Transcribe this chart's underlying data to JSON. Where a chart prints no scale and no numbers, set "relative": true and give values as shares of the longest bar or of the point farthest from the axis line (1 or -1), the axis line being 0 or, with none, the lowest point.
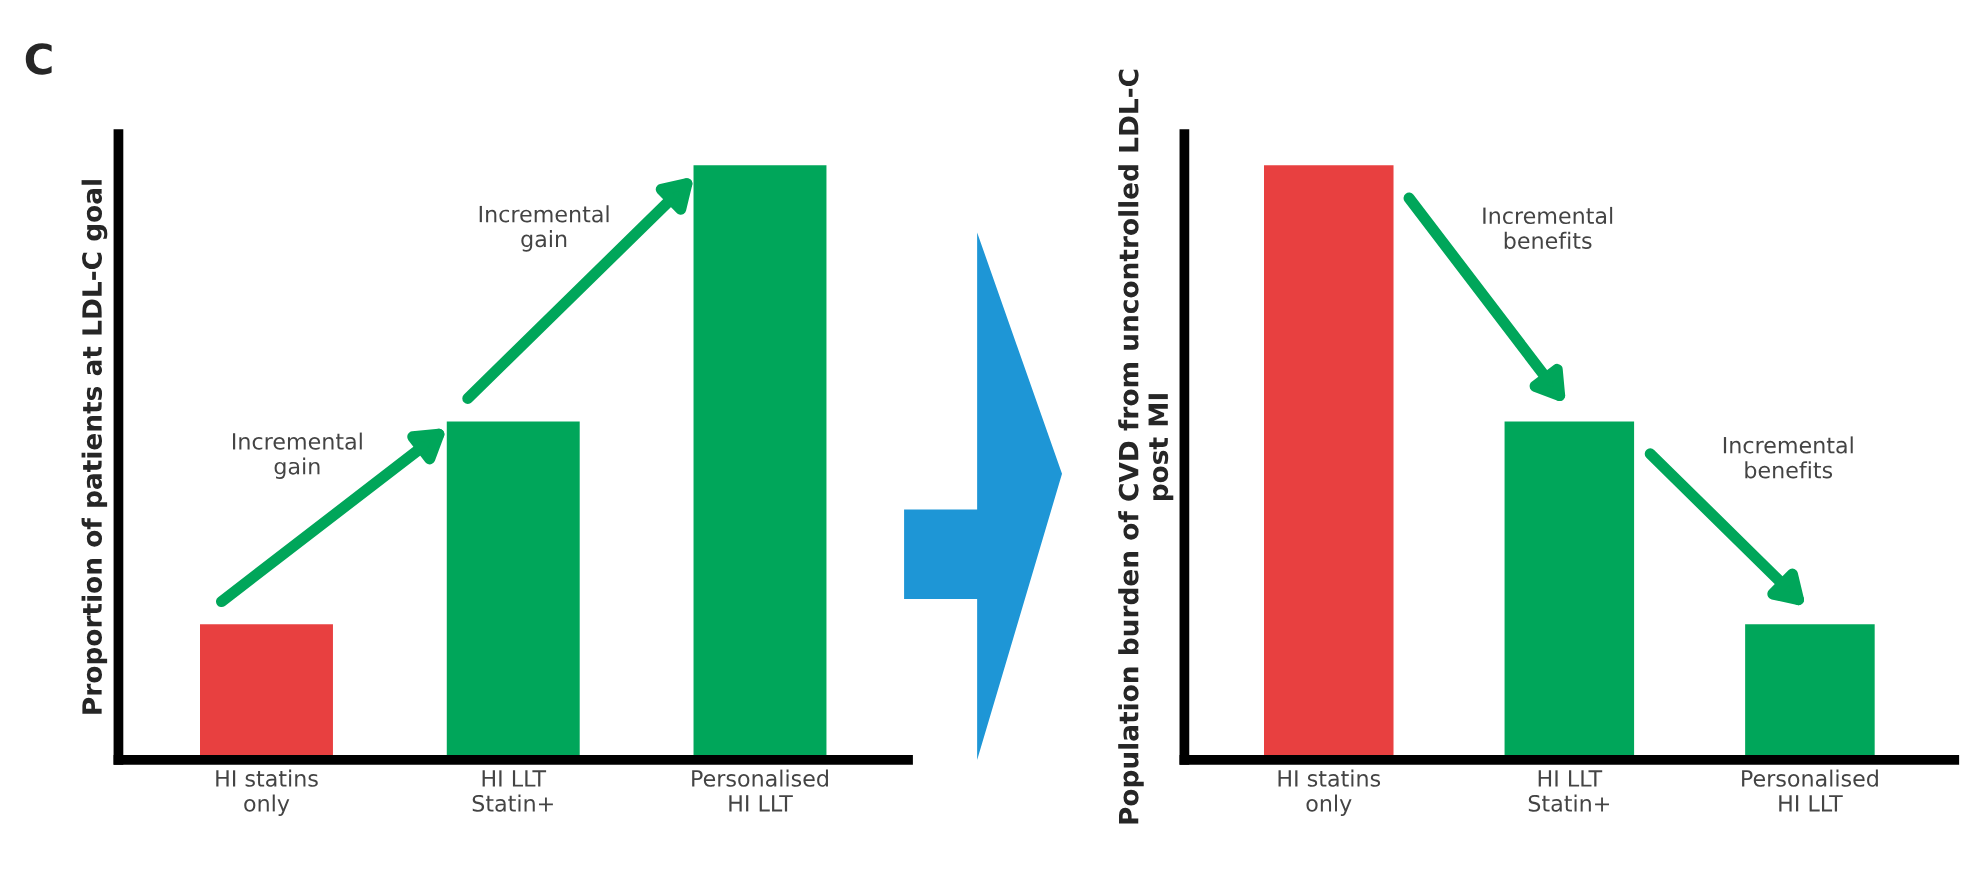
{
  "chart_data": [
    {
      "type": "bar",
      "title": "C",
      "ylabel": "Proportion of patients at LDL-C goal",
      "relative": true,
      "categories": [
        "HI statins\nonly",
        "HI LLT\nStatin+",
        "Personalised\nHI LLT"
      ],
      "values": [
        0.23,
        0.57,
        1
      ],
      "colors": [
        "#e84040",
        "#00a65a",
        "#00a65a"
      ],
      "annotations": [
        "Incremental\ngain",
        "Incremental\ngain"
      ]
    },
    {
      "type": "bar",
      "ylabel": "Population burden of CVD from uncontrolled LDL-C\npost MI",
      "relative": true,
      "categories": [
        "HI statins\nonly",
        "HI LLT\nStatin+",
        "Personalised\nHI LLT"
      ],
      "values": [
        1,
        0.57,
        0.23
      ],
      "colors": [
        "#e84040",
        "#00a65a",
        "#00a65a"
      ],
      "annotations": [
        "Incremental\nbenefits",
        "Incremental\nbenefits"
      ]
    }
  ]
}
